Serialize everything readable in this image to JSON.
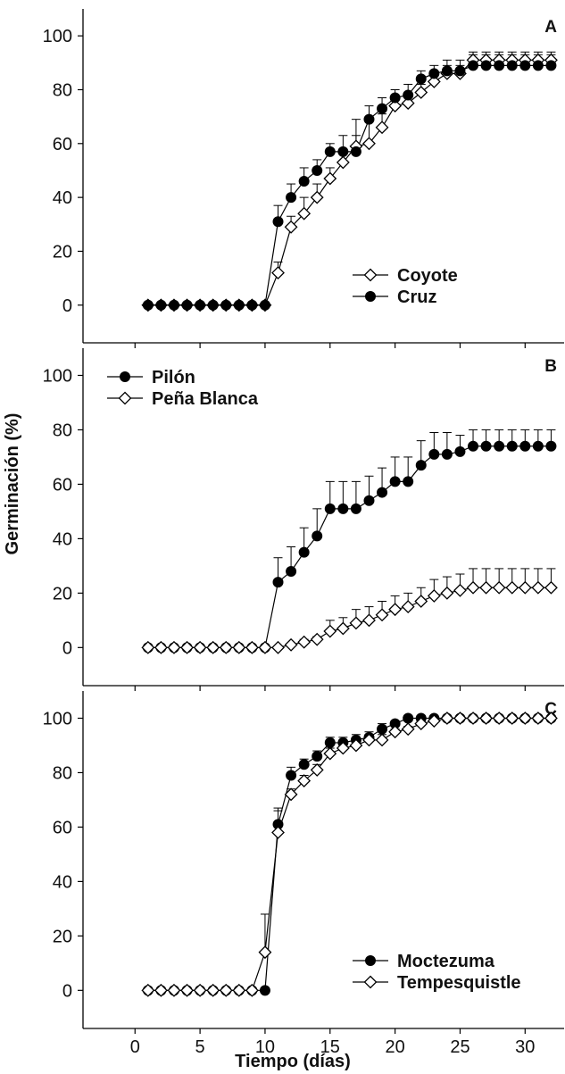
{
  "chart_data": {
    "type": "line",
    "ylabel": "Germinación (%)",
    "xlabel": "Tiempo (días)",
    "xlim": [
      -4,
      33
    ],
    "x_ticks": [
      0,
      5,
      10,
      15,
      20,
      25,
      30
    ],
    "x_tick_labels": [
      "0",
      "5",
      "10",
      "15",
      "20",
      "25",
      "30"
    ],
    "y_ticks": [
      0,
      20,
      40,
      60,
      80,
      100
    ],
    "y_tick_labels": [
      "0",
      "20",
      "40",
      "60",
      "80",
      "100"
    ],
    "x": [
      1,
      2,
      3,
      4,
      5,
      6,
      7,
      8,
      9,
      10,
      11,
      12,
      13,
      14,
      15,
      16,
      17,
      18,
      19,
      20,
      21,
      22,
      23,
      24,
      25,
      26,
      27,
      28,
      29,
      30,
      31,
      32
    ],
    "panels": [
      {
        "label": "A",
        "ylim": [
          -14,
          110
        ],
        "legend_position": "bottom-right",
        "series": [
          {
            "name": "Coyote",
            "marker": "diamond-open",
            "values": [
              0,
              0,
              0,
              0,
              0,
              0,
              0,
              0,
              0,
              0,
              12,
              29,
              34,
              40,
              47,
              53,
              59,
              60,
              66,
              74,
              75,
              79,
              83,
              86,
              86,
              91,
              91,
              91,
              91,
              91,
              91,
              91
            ],
            "error": [
              0,
              0,
              0,
              0,
              0,
              0,
              0,
              0,
              0,
              0,
              4,
              4,
              6,
              5,
              4,
              4,
              4,
              9,
              5,
              3,
              3,
              3,
              3,
              3,
              3,
              3,
              3,
              3,
              3,
              3,
              3,
              3
            ]
          },
          {
            "name": "Cruz",
            "marker": "circle-filled",
            "values": [
              0,
              0,
              0,
              0,
              0,
              0,
              0,
              0,
              0,
              0,
              31,
              40,
              46,
              50,
              57,
              57,
              57,
              69,
              73,
              77,
              78,
              84,
              86,
              87,
              87,
              89,
              89,
              89,
              89,
              89,
              89,
              89
            ],
            "error": [
              0,
              0,
              0,
              0,
              0,
              0,
              0,
              0,
              0,
              0,
              6,
              5,
              5,
              4,
              3,
              6,
              12,
              5,
              4,
              3,
              4,
              3,
              3,
              4,
              4,
              4,
              4,
              4,
              4,
              4,
              4,
              4
            ]
          }
        ]
      },
      {
        "label": "B",
        "ylim": [
          -14,
          110
        ],
        "legend_position": "top-left",
        "series": [
          {
            "name": "Pilón",
            "marker": "circle-filled",
            "values": [
              0,
              0,
              0,
              0,
              0,
              0,
              0,
              0,
              0,
              0,
              24,
              28,
              35,
              41,
              51,
              51,
              51,
              54,
              57,
              61,
              61,
              67,
              71,
              71,
              72,
              74,
              74,
              74,
              74,
              74,
              74,
              74
            ],
            "error": [
              0,
              0,
              0,
              0,
              0,
              0,
              0,
              0,
              0,
              0,
              9,
              9,
              9,
              10,
              10,
              10,
              10,
              9,
              9,
              9,
              9,
              9,
              8,
              8,
              6,
              6,
              6,
              6,
              6,
              6,
              6,
              6
            ]
          },
          {
            "name": "Peña Blanca",
            "marker": "diamond-open",
            "values": [
              0,
              0,
              0,
              0,
              0,
              0,
              0,
              0,
              0,
              0,
              0,
              1,
              2,
              3,
              6,
              7,
              9,
              10,
              12,
              14,
              15,
              17,
              19,
              20,
              21,
              22,
              22,
              22,
              22,
              22,
              22,
              22
            ],
            "error": [
              0,
              0,
              0,
              0,
              0,
              0,
              0,
              0,
              0,
              0,
              0,
              0,
              1,
              1,
              4,
              4,
              5,
              5,
              5,
              5,
              5,
              5,
              6,
              6,
              6,
              7,
              7,
              7,
              7,
              7,
              7,
              7
            ]
          }
        ]
      },
      {
        "label": "C",
        "ylim": [
          -14,
          110
        ],
        "legend_position": "bottom-right",
        "series": [
          {
            "name": "Moctezuma",
            "marker": "circle-filled",
            "values": [
              0,
              0,
              0,
              0,
              0,
              0,
              0,
              0,
              0,
              0,
              61,
              79,
              83,
              86,
              91,
              91,
              92,
              93,
              96,
              98,
              100,
              100,
              100,
              100,
              100,
              100,
              100,
              100,
              100,
              100,
              100,
              100
            ],
            "error": [
              0,
              0,
              0,
              0,
              0,
              0,
              0,
              0,
              0,
              0,
              6,
              3,
              2,
              2,
              2,
              2,
              2,
              2,
              2,
              1,
              1,
              1,
              0,
              0,
              0,
              0,
              0,
              0,
              0,
              0,
              0,
              0
            ]
          },
          {
            "name": "Tempesquistle",
            "marker": "diamond-open",
            "values": [
              0,
              0,
              0,
              0,
              0,
              0,
              0,
              0,
              0,
              14,
              58,
              72,
              77,
              81,
              87,
              89,
              90,
              92,
              92,
              95,
              96,
              98,
              99,
              100,
              100,
              100,
              100,
              100,
              100,
              100,
              100,
              100
            ],
            "error": [
              0,
              0,
              0,
              0,
              0,
              0,
              0,
              0,
              0,
              14,
              8,
              2,
              2,
              2,
              2,
              2,
              2,
              2,
              2,
              1,
              1,
              1,
              1,
              0,
              0,
              0,
              0,
              0,
              0,
              0,
              0,
              0
            ]
          }
        ]
      }
    ]
  }
}
